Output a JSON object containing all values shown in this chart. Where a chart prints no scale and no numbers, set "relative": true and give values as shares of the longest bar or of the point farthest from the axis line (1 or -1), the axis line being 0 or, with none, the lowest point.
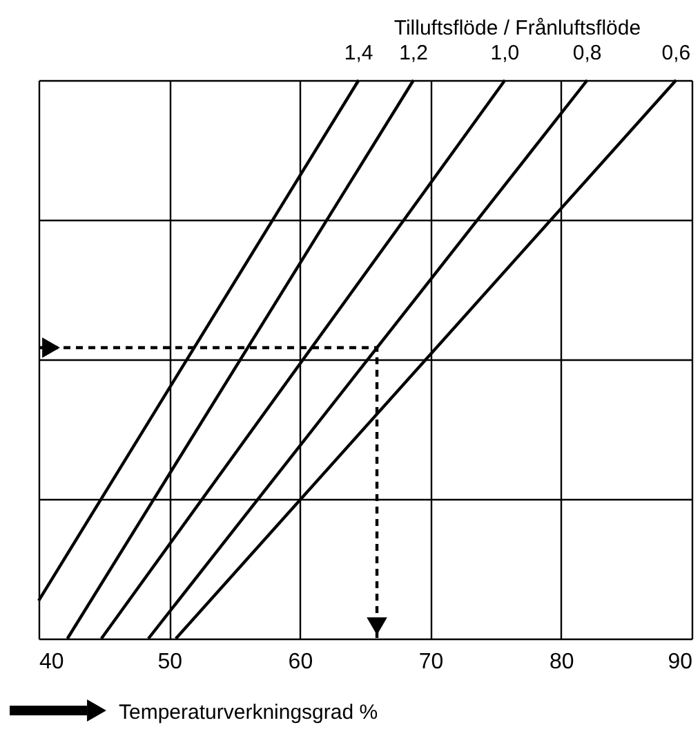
{
  "chart_data": {
    "type": "line",
    "relative": true,
    "legend_title": "Tilluftsflöde / Frånluftsflöde",
    "xlabel": "Temperaturverkningsgrad %",
    "xlim": [
      40,
      90
    ],
    "xticks": [
      40,
      50,
      60,
      70,
      80,
      90
    ],
    "grid": true,
    "line_style": "solid",
    "series": [
      {
        "name": "1,4",
        "color": "#000000",
        "x": [
          40,
          64.5
        ],
        "values": [
          0.068,
          1
        ]
      },
      {
        "name": "1,2",
        "color": "#000000",
        "x": [
          42.2,
          68.7
        ],
        "values": [
          0,
          1
        ]
      },
      {
        "name": "1,0",
        "color": "#000000",
        "x": [
          44.8,
          75.7
        ],
        "values": [
          0,
          1
        ]
      },
      {
        "name": "0,8",
        "color": "#000000",
        "x": [
          48.4,
          82.0
        ],
        "values": [
          0,
          1
        ]
      },
      {
        "name": "0,6",
        "color": "#000000",
        "x": [
          50.5,
          88.8
        ],
        "values": [
          0,
          1
        ]
      },
      {
        "type": "line",
        "line_style": "dashed",
        "color": "#000000",
        "x": [
          40,
          65.9,
          65.9
        ],
        "values": [
          0.521,
          0.521,
          0
        ]
      }
    ]
  }
}
